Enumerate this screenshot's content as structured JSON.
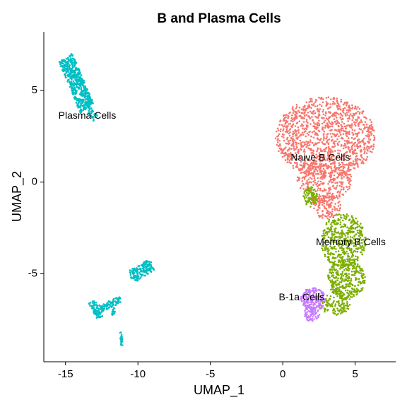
{
  "chart_data": {
    "type": "scatter",
    "title": "B and Plasma Cells",
    "xlabel": "UMAP_1",
    "ylabel": "UMAP_2",
    "xlim": [
      -16.5,
      7.8
    ],
    "ylim": [
      -9.8,
      8.2
    ],
    "xticks": [
      -15,
      -10,
      -5,
      0,
      5
    ],
    "xtick_labels": [
      "-15",
      "-10",
      "-5",
      "0",
      "5"
    ],
    "yticks": [
      -5,
      0,
      5
    ],
    "ytick_labels": [
      "-5",
      "0",
      "5"
    ],
    "grid": false,
    "legend": "none",
    "series": [
      {
        "name": "Naive B Cells",
        "color": "#F8766D",
        "approx_points": 1600,
        "regions": [
          {
            "shape": "ellipse",
            "cx": 2.95,
            "cy": 2.45,
            "rx": 3.45,
            "ry": 2.2,
            "weight": 0.72
          },
          {
            "shape": "ellipse",
            "cx": 2.9,
            "cy": 0.2,
            "rx": 1.9,
            "ry": 1.25,
            "weight": 0.2
          },
          {
            "shape": "ellipse",
            "cx": 3.0,
            "cy": -1.3,
            "rx": 1.0,
            "ry": 0.7,
            "weight": 0.08
          }
        ]
      },
      {
        "name": "Memory B Cells",
        "color": "#7CAE00",
        "approx_points": 1000,
        "regions": [
          {
            "shape": "ellipse",
            "cx": 4.2,
            "cy": -3.2,
            "rx": 1.55,
            "ry": 1.5,
            "weight": 0.45
          },
          {
            "shape": "ellipse",
            "cx": 4.4,
            "cy": -5.3,
            "rx": 1.3,
            "ry": 1.1,
            "weight": 0.35
          },
          {
            "shape": "ellipse",
            "cx": 3.6,
            "cy": -6.6,
            "rx": 1.1,
            "ry": 0.65,
            "weight": 0.12
          },
          {
            "shape": "ellipse",
            "cx": 1.9,
            "cy": -0.8,
            "rx": 0.5,
            "ry": 0.55,
            "weight": 0.08
          }
        ]
      },
      {
        "name": "B-1a Cells",
        "color": "#C77CFF",
        "approx_points": 260,
        "regions": [
          {
            "shape": "ellipse",
            "cx": 2.1,
            "cy": -6.4,
            "rx": 0.85,
            "ry": 0.65,
            "weight": 0.75
          },
          {
            "shape": "ellipse",
            "cx": 2.0,
            "cy": -7.2,
            "rx": 0.55,
            "ry": 0.4,
            "weight": 0.25
          }
        ]
      },
      {
        "name": "Plasma Cells",
        "color": "#00BFC4",
        "approx_points": 900,
        "regions": [
          {
            "shape": "band",
            "x0": -15.0,
            "y0": 6.8,
            "x1": -13.5,
            "y1": 4.0,
            "width": 1.05,
            "weight": 0.55
          },
          {
            "shape": "band",
            "x0": -13.6,
            "y0": 4.3,
            "x1": -12.9,
            "y1": 3.5,
            "width": 0.5,
            "weight": 0.05
          },
          {
            "shape": "band",
            "x0": -10.5,
            "y0": -5.2,
            "x1": -9.0,
            "y1": -4.5,
            "width": 0.75,
            "weight": 0.17
          },
          {
            "shape": "band",
            "x0": -13.2,
            "y0": -6.5,
            "x1": -12.6,
            "y1": -7.4,
            "width": 0.45,
            "weight": 0.07
          },
          {
            "shape": "band",
            "x0": -12.6,
            "y0": -6.9,
            "x1": -11.2,
            "y1": -6.4,
            "width": 0.4,
            "weight": 0.09
          },
          {
            "shape": "band",
            "x0": -11.6,
            "y0": -6.9,
            "x1": -11.8,
            "y1": -7.3,
            "width": 0.2,
            "weight": 0.02
          },
          {
            "shape": "band",
            "x0": -11.2,
            "y0": -8.2,
            "x1": -11.1,
            "y1": -8.9,
            "width": 0.15,
            "weight": 0.02
          }
        ]
      }
    ],
    "annotations": [
      {
        "text": "Plasma Cells",
        "x": -13.5,
        "y": 3.6
      },
      {
        "text": "Naive B Cells",
        "x": 2.6,
        "y": 1.3
      },
      {
        "text": "Memory B Cells",
        "x": 4.7,
        "y": -3.3
      },
      {
        "text": "B-1a Cells",
        "x": 1.3,
        "y": -6.3
      }
    ]
  }
}
